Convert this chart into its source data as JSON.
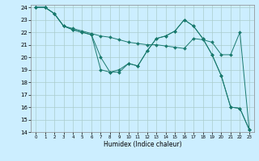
{
  "title": "",
  "xlabel": "Humidex (Indice chaleur)",
  "background_color": "#cceeff",
  "grid_color": "#aacccc",
  "line_color": "#1a7a6e",
  "xlim": [
    -0.5,
    23.5
  ],
  "ylim": [
    14,
    24.2
  ],
  "xticks": [
    0,
    1,
    2,
    3,
    4,
    5,
    6,
    7,
    8,
    9,
    10,
    11,
    12,
    13,
    14,
    15,
    16,
    17,
    18,
    19,
    20,
    21,
    22,
    23
  ],
  "yticks": [
    14,
    15,
    16,
    17,
    18,
    19,
    20,
    21,
    22,
    23,
    24
  ],
  "series": [
    {
      "x": [
        0,
        1,
        2,
        3,
        4,
        5,
        6,
        7,
        8,
        9,
        10,
        11,
        12,
        13,
        14,
        15,
        16,
        17,
        18,
        19,
        20,
        21,
        22,
        23
      ],
      "y": [
        24,
        24,
        23.5,
        22.5,
        22.3,
        22.1,
        21.9,
        21.7,
        21.6,
        21.4,
        21.2,
        21.1,
        21.0,
        21.0,
        20.9,
        20.8,
        20.7,
        21.5,
        21.4,
        21.2,
        20.2,
        20.2,
        22.0,
        14.2
      ]
    },
    {
      "x": [
        0,
        1,
        2,
        3,
        4,
        5,
        6,
        7,
        8,
        9,
        10,
        11,
        12,
        13,
        14,
        15,
        16,
        17,
        18,
        19,
        20,
        21,
        22,
        23
      ],
      "y": [
        24,
        24,
        23.5,
        22.5,
        22.2,
        22.0,
        21.8,
        19.0,
        18.8,
        19.0,
        19.5,
        19.3,
        20.5,
        21.5,
        21.7,
        22.1,
        23.0,
        22.5,
        21.5,
        20.2,
        18.5,
        16.0,
        15.9,
        14.2
      ]
    },
    {
      "x": [
        0,
        1,
        2,
        3,
        4,
        5,
        6,
        7,
        8,
        9,
        10,
        11,
        12,
        13,
        14,
        15,
        16,
        17,
        18,
        19,
        20,
        21,
        22,
        23
      ],
      "y": [
        24,
        24,
        23.5,
        22.5,
        22.2,
        22.0,
        21.8,
        20.0,
        18.8,
        18.8,
        19.5,
        19.3,
        20.5,
        21.5,
        21.7,
        22.1,
        23.0,
        22.5,
        21.5,
        20.2,
        18.5,
        16.0,
        15.9,
        14.2
      ]
    }
  ]
}
